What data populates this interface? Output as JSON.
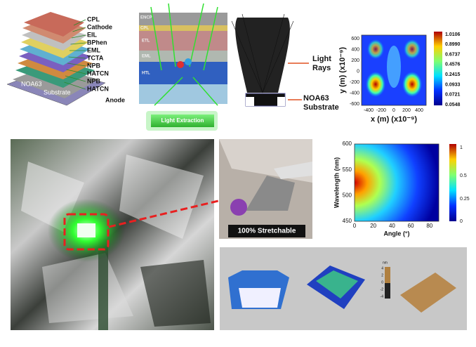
{
  "stack_diagram": {
    "layers": [
      "CPL",
      "Cathode",
      "EIL",
      "BPhen",
      "EML",
      "TCTA",
      "NPB",
      "HATCN",
      "NPB",
      "HATCN"
    ],
    "anode": "Anode",
    "substrate_labels": [
      "NOA63",
      "Substrate"
    ]
  },
  "device_schematic": {
    "layer_labels": [
      "ENCP",
      "CPL",
      "ETL",
      "EML",
      "HTL"
    ],
    "caption": "Light Extraction"
  },
  "ray_trace": {
    "light_rays": [
      "Light",
      "Rays"
    ],
    "substrate": [
      "NOA63",
      "Substrate"
    ]
  },
  "field_map": {
    "x_label": "x (m) (x10⁻⁹)",
    "y_label": "y (m) (x10⁻⁹)",
    "x_ticks": [
      "-400",
      "-200",
      "0",
      "200",
      "400"
    ],
    "y_ticks": [
      "600",
      "400",
      "200",
      "0",
      "-200",
      "-400",
      "-600"
    ],
    "colorbar": [
      "1.0106",
      "0.8990",
      "0.6737",
      "0.4576",
      "0.2415",
      "0.0933",
      "0.0721",
      "0.0548"
    ]
  },
  "stretch_photo": {
    "caption": "100% Stretchable"
  },
  "angular_map": {
    "x_label": "Angle (°)",
    "y_label": "Wavelength (nm)",
    "x_ticks": [
      "0",
      "20",
      "40",
      "60",
      "80"
    ],
    "y_ticks": [
      "600",
      "550",
      "500",
      "450"
    ],
    "colorbar": [
      "1",
      "0.5",
      "0.25",
      "0"
    ]
  },
  "afm_panel": {
    "scale_unit": "nm",
    "scale_ticks": [
      "4",
      "2",
      "0",
      "-2",
      "-4"
    ]
  }
}
